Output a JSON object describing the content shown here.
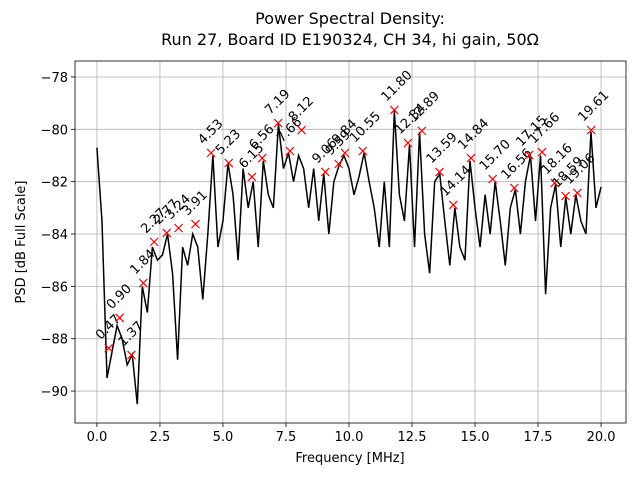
{
  "chart_data": {
    "type": "line",
    "title": [
      "Power Spectral Density:",
      "Run 27, Board ID E190324, CH 34, hi gain, 50Ω"
    ],
    "x_label": "Frequency [MHz]",
    "y_label": "PSD [dB Full Scale]",
    "grid": true,
    "xlim": [
      -0.87,
      20.99
    ],
    "ylim": [
      -91.22,
      -77.39
    ],
    "xticks": [
      {
        "value": 0,
        "label": "0.0"
      },
      {
        "value": 2.5,
        "label": "2.5"
      },
      {
        "value": 5,
        "label": "5.0"
      },
      {
        "value": 7.5,
        "label": "7.5"
      },
      {
        "value": 10,
        "label": "10.0"
      },
      {
        "value": 12.5,
        "label": "12.5"
      },
      {
        "value": 15,
        "label": "15.0"
      },
      {
        "value": 17.5,
        "label": "17.5"
      },
      {
        "value": 20,
        "label": "20.0"
      }
    ],
    "yticks": [
      {
        "value": -90,
        "label": "−90"
      },
      {
        "value": -88,
        "label": "−88"
      },
      {
        "value": -86,
        "label": "−86"
      },
      {
        "value": -84,
        "label": "−84"
      },
      {
        "value": -82,
        "label": "−82"
      },
      {
        "value": -80,
        "label": "−80"
      },
      {
        "value": -78,
        "label": "−78"
      }
    ],
    "series": [
      {
        "color": "#000000",
        "x": [
          0.0,
          0.2,
          0.4,
          0.6,
          0.8,
          1.0,
          1.2,
          1.4,
          1.6,
          1.8,
          2.0,
          2.2,
          2.4,
          2.6,
          2.8,
          3.0,
          3.2,
          3.4,
          3.6,
          3.8,
          4.0,
          4.2,
          4.4,
          4.6,
          4.8,
          5.0,
          5.2,
          5.4,
          5.6,
          5.8,
          6.0,
          6.2,
          6.4,
          6.6,
          6.8,
          7.0,
          7.2,
          7.4,
          7.6,
          7.8,
          8.0,
          8.2,
          8.4,
          8.6,
          8.8,
          9.0,
          9.2,
          9.4,
          9.6,
          9.8,
          10.0,
          10.2,
          10.4,
          10.6,
          10.8,
          11.0,
          11.2,
          11.4,
          11.6,
          11.8,
          12.0,
          12.2,
          12.4,
          12.6,
          12.8,
          13.0,
          13.2,
          13.4,
          13.6,
          13.8,
          14.0,
          14.2,
          14.4,
          14.6,
          14.8,
          15.0,
          15.2,
          15.4,
          15.6,
          15.8,
          16.0,
          16.2,
          16.4,
          16.6,
          16.8,
          17.0,
          17.2,
          17.4,
          17.6,
          17.8,
          18.0,
          18.2,
          18.4,
          18.6,
          18.8,
          19.0,
          19.2,
          19.4,
          19.6,
          19.8,
          20.0
        ],
        "values": [
          -80.7,
          -83.5,
          -89.5,
          -88.5,
          -87.5,
          -88.0,
          -89.0,
          -88.6,
          -90.5,
          -86.0,
          -87.0,
          -84.5,
          -85.0,
          -84.8,
          -84.0,
          -85.5,
          -88.8,
          -84.5,
          -85.2,
          -84.0,
          -84.5,
          -86.5,
          -84.0,
          -81.0,
          -84.5,
          -83.5,
          -81.3,
          -82.5,
          -85.0,
          -81.5,
          -83.0,
          -82.0,
          -84.5,
          -81.2,
          -82.5,
          -83.0,
          -79.8,
          -81.5,
          -80.9,
          -82.0,
          -81.0,
          -81.5,
          -83.0,
          -81.5,
          -83.5,
          -81.7,
          -84.0,
          -82.0,
          -81.4,
          -81.0,
          -81.5,
          -82.5,
          -81.8,
          -80.9,
          -82.0,
          -83.0,
          -84.5,
          -82.0,
          -84.5,
          -79.3,
          -82.5,
          -83.5,
          -80.6,
          -84.5,
          -80.1,
          -84.0,
          -85.5,
          -82.0,
          -81.7,
          -83.5,
          -85.2,
          -83.0,
          -84.5,
          -85.0,
          -81.2,
          -83.0,
          -84.5,
          -82.5,
          -84.0,
          -82.0,
          -83.5,
          -85.2,
          -83.0,
          -82.3,
          -84.0,
          -82.0,
          -81.0,
          -83.5,
          -81.0,
          -86.3,
          -83.0,
          -82.1,
          -84.5,
          -82.6,
          -84.0,
          -82.5,
          -83.5,
          -84.0,
          -80.1,
          -83.0,
          -82.2
        ]
      }
    ],
    "peaks": {
      "color": "#ff0000",
      "x": [
        0.47,
        0.9,
        1.37,
        1.84,
        2.27,
        2.77,
        3.24,
        3.91,
        4.53,
        5.23,
        6.15,
        6.56,
        7.19,
        7.66,
        8.12,
        9.06,
        9.59,
        9.84,
        10.55,
        11.8,
        12.34,
        12.89,
        13.59,
        14.14,
        14.84,
        15.7,
        16.56,
        17.15,
        17.66,
        18.16,
        18.59,
        19.06,
        19.61
      ],
      "labels": [
        "0.47",
        "0.90",
        "1.37",
        "1.84",
        "2.27",
        "2.77",
        "3.24",
        "3.91",
        "4.53",
        "5.23",
        "6.15",
        "6.56",
        "7.19",
        "7.66",
        "8.12",
        "9.06",
        "9.59",
        "9.84",
        "10.55",
        "11.80",
        "12.34",
        "12.89",
        "13.59",
        "14.14",
        "14.84",
        "15.70",
        "16.56",
        "17.15",
        "17.66",
        "18.16",
        "18.59",
        "19.06",
        "19.61"
      ],
      "values": [
        -88.36,
        -87.2,
        -88.62,
        -85.87,
        -84.3,
        -83.96,
        -83.77,
        -83.62,
        -80.9,
        -81.29,
        -81.82,
        -81.1,
        -79.76,
        -80.83,
        -80.03,
        -81.63,
        -81.32,
        -80.9,
        -80.83,
        -79.26,
        -80.52,
        -80.06,
        -81.63,
        -82.89,
        -81.1,
        -81.9,
        -82.24,
        -80.98,
        -80.87,
        -82.05,
        -82.55,
        -82.43,
        -80.03
      ]
    }
  }
}
